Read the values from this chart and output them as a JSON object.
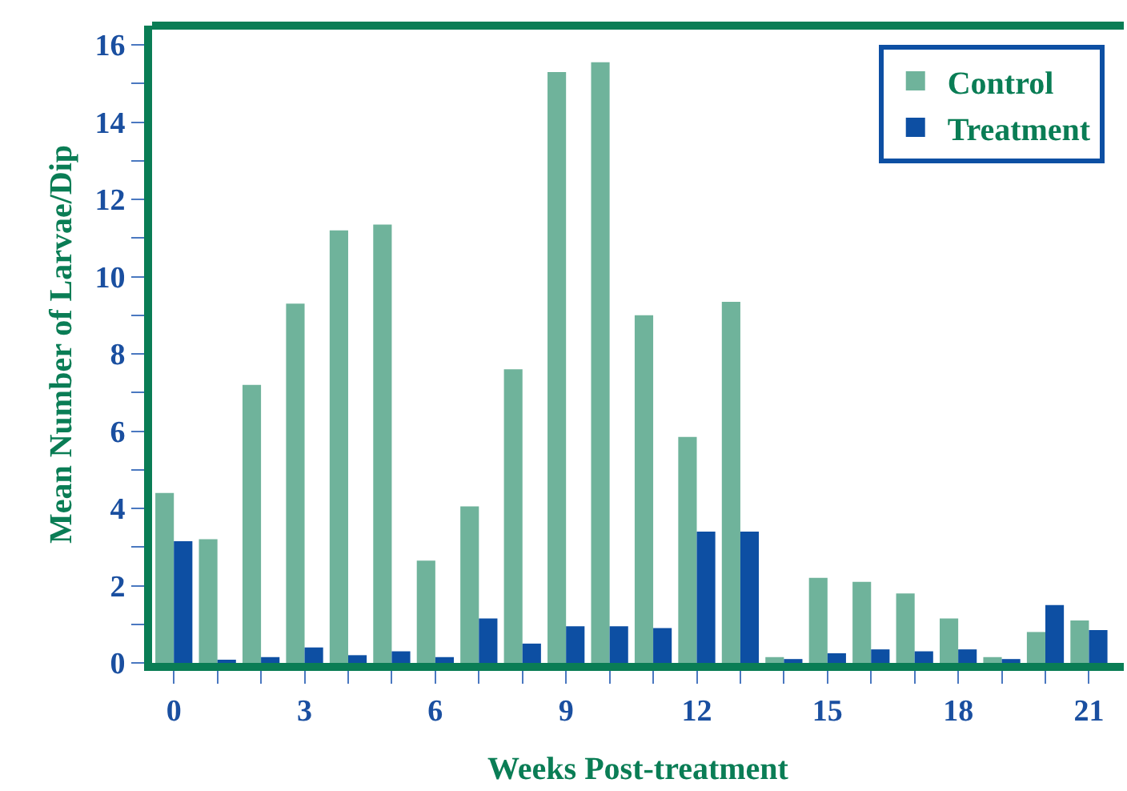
{
  "chart_data": {
    "type": "bar",
    "xlabel": "Weeks Post-treatment",
    "ylabel": "Mean Number of Larvae/Dip",
    "x": [
      0,
      1,
      2,
      3,
      4,
      5,
      6,
      7,
      8,
      9,
      10,
      11,
      12,
      13,
      14,
      15,
      16,
      17,
      18,
      19,
      20,
      21
    ],
    "series": [
      {
        "name": "Control",
        "color": "#6fb39b",
        "values": [
          4.4,
          3.2,
          7.2,
          9.3,
          11.2,
          11.35,
          2.65,
          4.05,
          7.6,
          15.3,
          15.55,
          9.0,
          5.85,
          9.35,
          0.15,
          2.2,
          2.1,
          1.8,
          1.15,
          0.15,
          0.8,
          1.1
        ]
      },
      {
        "name": "Treatment",
        "color": "#0d4fa3",
        "values": [
          3.15,
          0.05,
          0.15,
          0.4,
          0.2,
          0.3,
          0.15,
          1.15,
          0.5,
          0.95,
          0.95,
          0.9,
          3.4,
          3.4,
          0.1,
          0.25,
          0.35,
          0.3,
          0.35,
          0.1,
          1.5,
          0.85
        ]
      }
    ],
    "xlim": [
      -0.5,
      21.8
    ],
    "xticks": [
      0,
      {
        "value": 1,
        "label": null
      },
      {
        "value": 2,
        "label": null
      },
      3,
      {
        "value": 4,
        "label": null
      },
      {
        "value": 5,
        "label": null
      },
      6,
      {
        "value": 7,
        "label": null
      },
      {
        "value": 8,
        "label": null
      },
      9,
      {
        "value": 10,
        "label": null
      },
      {
        "value": 11,
        "label": null
      },
      12,
      {
        "value": 13,
        "label": null
      },
      {
        "value": 14,
        "label": null
      },
      15,
      {
        "value": 16,
        "label": null
      },
      {
        "value": 17,
        "label": null
      },
      18,
      {
        "value": 19,
        "label": null
      },
      {
        "value": 20,
        "label": null
      },
      21
    ],
    "ylim": [
      0,
      16.5
    ],
    "yticks": [
      0,
      {
        "value": 1,
        "label": null
      },
      2,
      {
        "value": 3,
        "label": null
      },
      4,
      {
        "value": 5,
        "label": null
      },
      6,
      {
        "value": 7,
        "label": null
      },
      8,
      {
        "value": 9,
        "label": null
      },
      10,
      {
        "value": 11,
        "label": null
      },
      12,
      {
        "value": 13,
        "label": null
      },
      14,
      {
        "value": 15,
        "label": null
      },
      16
    ],
    "legend": "top right"
  }
}
